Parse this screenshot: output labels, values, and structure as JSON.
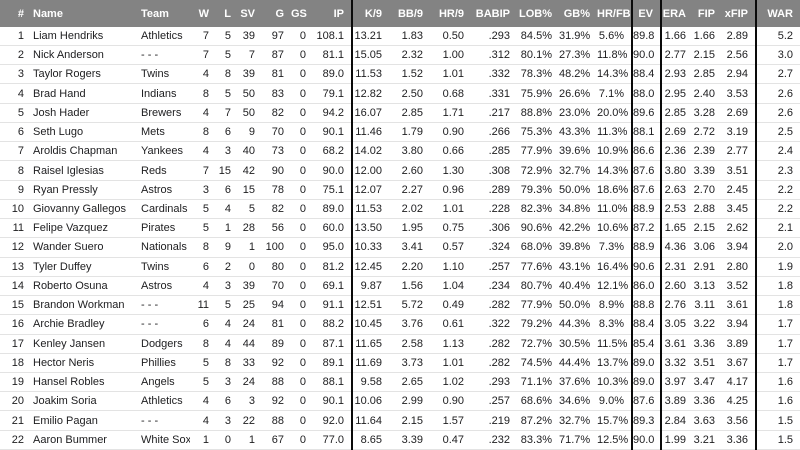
{
  "theme": {
    "header_bg": "#838383",
    "header_text": "#ffffff",
    "divider_color": "#0a0a0a",
    "row_line_color": "#e3e3e3",
    "text_color": "#1d1d1f"
  },
  "table": {
    "columns": [
      {
        "key": "rank",
        "label": "#",
        "group_end": false
      },
      {
        "key": "name",
        "label": "Name",
        "group_end": false
      },
      {
        "key": "team",
        "label": "Team",
        "group_end": false
      },
      {
        "key": "w",
        "label": "W",
        "group_end": false
      },
      {
        "key": "l",
        "label": "L",
        "group_end": false
      },
      {
        "key": "sv",
        "label": "SV",
        "group_end": false
      },
      {
        "key": "g",
        "label": "G",
        "group_end": false
      },
      {
        "key": "gs",
        "label": "GS",
        "group_end": false
      },
      {
        "key": "ip",
        "label": "IP",
        "group_end": true
      },
      {
        "key": "k9",
        "label": "K/9",
        "group_end": false
      },
      {
        "key": "bb9",
        "label": "BB/9",
        "group_end": false
      },
      {
        "key": "hr9",
        "label": "HR/9",
        "group_end": false
      },
      {
        "key": "babip",
        "label": "BABIP",
        "group_end": false
      },
      {
        "key": "lob",
        "label": "LOB%",
        "group_end": false
      },
      {
        "key": "gb",
        "label": "GB%",
        "group_end": false
      },
      {
        "key": "hrfb",
        "label": "HR/FB",
        "group_end": true
      },
      {
        "key": "ev",
        "label": "EV",
        "group_end": true
      },
      {
        "key": "era",
        "label": "ERA",
        "group_end": false
      },
      {
        "key": "fip",
        "label": "FIP",
        "group_end": false
      },
      {
        "key": "xfip",
        "label": "xFIP",
        "group_end": true
      },
      {
        "key": "war",
        "label": "WAR",
        "group_end": false
      }
    ],
    "rows": [
      {
        "rank": "1",
        "name": "Liam Hendriks",
        "team": "Athletics",
        "w": "7",
        "l": "5",
        "sv": "39",
        "g": "97",
        "gs": "0",
        "ip": "108.1",
        "k9": "13.21",
        "bb9": "1.83",
        "hr9": "0.50",
        "babip": ".293",
        "lob": "84.5%",
        "gb": "31.9%",
        "hrfb": "5.6%",
        "ev": "89.8",
        "era": "1.66",
        "fip": "1.66",
        "xfip": "2.89",
        "war": "5.2"
      },
      {
        "rank": "2",
        "name": "Nick Anderson",
        "team": "- - -",
        "w": "7",
        "l": "5",
        "sv": "7",
        "g": "87",
        "gs": "0",
        "ip": "81.1",
        "k9": "15.05",
        "bb9": "2.32",
        "hr9": "1.00",
        "babip": ".312",
        "lob": "80.1%",
        "gb": "27.3%",
        "hrfb": "11.8%",
        "ev": "90.0",
        "era": "2.77",
        "fip": "2.15",
        "xfip": "2.56",
        "war": "3.0"
      },
      {
        "rank": "3",
        "name": "Taylor Rogers",
        "team": "Twins",
        "w": "4",
        "l": "8",
        "sv": "39",
        "g": "81",
        "gs": "0",
        "ip": "89.0",
        "k9": "11.53",
        "bb9": "1.52",
        "hr9": "1.01",
        "babip": ".332",
        "lob": "78.3%",
        "gb": "48.2%",
        "hrfb": "14.3%",
        "ev": "88.4",
        "era": "2.93",
        "fip": "2.85",
        "xfip": "2.94",
        "war": "2.7"
      },
      {
        "rank": "4",
        "name": "Brad Hand",
        "team": "Indians",
        "w": "8",
        "l": "5",
        "sv": "50",
        "g": "83",
        "gs": "0",
        "ip": "79.1",
        "k9": "12.82",
        "bb9": "2.50",
        "hr9": "0.68",
        "babip": ".331",
        "lob": "75.9%",
        "gb": "26.6%",
        "hrfb": "7.1%",
        "ev": "88.0",
        "era": "2.95",
        "fip": "2.40",
        "xfip": "3.53",
        "war": "2.6"
      },
      {
        "rank": "5",
        "name": "Josh Hader",
        "team": "Brewers",
        "w": "4",
        "l": "7",
        "sv": "50",
        "g": "82",
        "gs": "0",
        "ip": "94.2",
        "k9": "16.07",
        "bb9": "2.85",
        "hr9": "1.71",
        "babip": ".217",
        "lob": "88.8%",
        "gb": "23.0%",
        "hrfb": "20.0%",
        "ev": "89.6",
        "era": "2.85",
        "fip": "3.28",
        "xfip": "2.69",
        "war": "2.6"
      },
      {
        "rank": "6",
        "name": "Seth Lugo",
        "team": "Mets",
        "w": "8",
        "l": "6",
        "sv": "9",
        "g": "70",
        "gs": "0",
        "ip": "90.1",
        "k9": "11.46",
        "bb9": "1.79",
        "hr9": "0.90",
        "babip": ".266",
        "lob": "75.3%",
        "gb": "43.3%",
        "hrfb": "11.3%",
        "ev": "88.1",
        "era": "2.69",
        "fip": "2.72",
        "xfip": "3.19",
        "war": "2.5"
      },
      {
        "rank": "7",
        "name": "Aroldis Chapman",
        "team": "Yankees",
        "w": "4",
        "l": "3",
        "sv": "40",
        "g": "73",
        "gs": "0",
        "ip": "68.2",
        "k9": "14.02",
        "bb9": "3.80",
        "hr9": "0.66",
        "babip": ".285",
        "lob": "77.9%",
        "gb": "39.6%",
        "hrfb": "10.9%",
        "ev": "86.6",
        "era": "2.36",
        "fip": "2.39",
        "xfip": "2.77",
        "war": "2.4"
      },
      {
        "rank": "8",
        "name": "Raisel Iglesias",
        "team": "Reds",
        "w": "7",
        "l": "15",
        "sv": "42",
        "g": "90",
        "gs": "0",
        "ip": "90.0",
        "k9": "12.00",
        "bb9": "2.60",
        "hr9": "1.30",
        "babip": ".308",
        "lob": "72.9%",
        "gb": "32.7%",
        "hrfb": "14.3%",
        "ev": "87.6",
        "era": "3.80",
        "fip": "3.39",
        "xfip": "3.51",
        "war": "2.3"
      },
      {
        "rank": "9",
        "name": "Ryan Pressly",
        "team": "Astros",
        "w": "3",
        "l": "6",
        "sv": "15",
        "g": "78",
        "gs": "0",
        "ip": "75.1",
        "k9": "12.07",
        "bb9": "2.27",
        "hr9": "0.96",
        "babip": ".289",
        "lob": "79.3%",
        "gb": "50.0%",
        "hrfb": "18.6%",
        "ev": "87.6",
        "era": "2.63",
        "fip": "2.70",
        "xfip": "2.45",
        "war": "2.2"
      },
      {
        "rank": "10",
        "name": "Giovanny Gallegos",
        "team": "Cardinals",
        "w": "5",
        "l": "4",
        "sv": "5",
        "g": "82",
        "gs": "0",
        "ip": "89.0",
        "k9": "11.53",
        "bb9": "2.02",
        "hr9": "1.01",
        "babip": ".228",
        "lob": "82.3%",
        "gb": "34.8%",
        "hrfb": "11.0%",
        "ev": "88.9",
        "era": "2.53",
        "fip": "2.88",
        "xfip": "3.45",
        "war": "2.2"
      },
      {
        "rank": "11",
        "name": "Felipe Vazquez",
        "team": "Pirates",
        "w": "5",
        "l": "1",
        "sv": "28",
        "g": "56",
        "gs": "0",
        "ip": "60.0",
        "k9": "13.50",
        "bb9": "1.95",
        "hr9": "0.75",
        "babip": ".306",
        "lob": "90.6%",
        "gb": "42.2%",
        "hrfb": "10.6%",
        "ev": "87.2",
        "era": "1.65",
        "fip": "2.15",
        "xfip": "2.62",
        "war": "2.1"
      },
      {
        "rank": "12",
        "name": "Wander Suero",
        "team": "Nationals",
        "w": "8",
        "l": "9",
        "sv": "1",
        "g": "100",
        "gs": "0",
        "ip": "95.0",
        "k9": "10.33",
        "bb9": "3.41",
        "hr9": "0.57",
        "babip": ".324",
        "lob": "68.0%",
        "gb": "39.8%",
        "hrfb": "7.3%",
        "ev": "88.9",
        "era": "4.36",
        "fip": "3.06",
        "xfip": "3.94",
        "war": "2.0"
      },
      {
        "rank": "13",
        "name": "Tyler Duffey",
        "team": "Twins",
        "w": "6",
        "l": "2",
        "sv": "0",
        "g": "80",
        "gs": "0",
        "ip": "81.2",
        "k9": "12.45",
        "bb9": "2.20",
        "hr9": "1.10",
        "babip": ".257",
        "lob": "77.6%",
        "gb": "43.1%",
        "hrfb": "16.4%",
        "ev": "90.6",
        "era": "2.31",
        "fip": "2.91",
        "xfip": "2.80",
        "war": "1.9"
      },
      {
        "rank": "14",
        "name": "Roberto Osuna",
        "team": "Astros",
        "w": "4",
        "l": "3",
        "sv": "39",
        "g": "70",
        "gs": "0",
        "ip": "69.1",
        "k9": "9.87",
        "bb9": "1.56",
        "hr9": "1.04",
        "babip": ".234",
        "lob": "80.7%",
        "gb": "40.4%",
        "hrfb": "12.1%",
        "ev": "86.0",
        "era": "2.60",
        "fip": "3.13",
        "xfip": "3.52",
        "war": "1.8"
      },
      {
        "rank": "15",
        "name": "Brandon Workman",
        "team": "- - -",
        "w": "11",
        "l": "5",
        "sv": "25",
        "g": "94",
        "gs": "0",
        "ip": "91.1",
        "k9": "12.51",
        "bb9": "5.72",
        "hr9": "0.49",
        "babip": ".282",
        "lob": "77.9%",
        "gb": "50.0%",
        "hrfb": "8.9%",
        "ev": "88.8",
        "era": "2.76",
        "fip": "3.11",
        "xfip": "3.61",
        "war": "1.8"
      },
      {
        "rank": "16",
        "name": "Archie Bradley",
        "team": "- - -",
        "w": "6",
        "l": "4",
        "sv": "24",
        "g": "81",
        "gs": "0",
        "ip": "88.2",
        "k9": "10.45",
        "bb9": "3.76",
        "hr9": "0.61",
        "babip": ".322",
        "lob": "79.2%",
        "gb": "44.3%",
        "hrfb": "8.3%",
        "ev": "88.4",
        "era": "3.05",
        "fip": "3.22",
        "xfip": "3.94",
        "war": "1.7"
      },
      {
        "rank": "17",
        "name": "Kenley Jansen",
        "team": "Dodgers",
        "w": "8",
        "l": "4",
        "sv": "44",
        "g": "89",
        "gs": "0",
        "ip": "87.1",
        "k9": "11.65",
        "bb9": "2.58",
        "hr9": "1.13",
        "babip": ".282",
        "lob": "72.7%",
        "gb": "30.5%",
        "hrfb": "11.5%",
        "ev": "85.4",
        "era": "3.61",
        "fip": "3.36",
        "xfip": "3.89",
        "war": "1.7"
      },
      {
        "rank": "18",
        "name": "Hector Neris",
        "team": "Phillies",
        "w": "5",
        "l": "8",
        "sv": "33",
        "g": "92",
        "gs": "0",
        "ip": "89.1",
        "k9": "11.69",
        "bb9": "3.73",
        "hr9": "1.01",
        "babip": ".282",
        "lob": "74.5%",
        "gb": "44.4%",
        "hrfb": "13.7%",
        "ev": "89.0",
        "era": "3.32",
        "fip": "3.51",
        "xfip": "3.67",
        "war": "1.7"
      },
      {
        "rank": "19",
        "name": "Hansel Robles",
        "team": "Angels",
        "w": "5",
        "l": "3",
        "sv": "24",
        "g": "88",
        "gs": "0",
        "ip": "88.1",
        "k9": "9.58",
        "bb9": "2.65",
        "hr9": "1.02",
        "babip": ".293",
        "lob": "71.1%",
        "gb": "37.6%",
        "hrfb": "10.3%",
        "ev": "89.0",
        "era": "3.97",
        "fip": "3.47",
        "xfip": "4.17",
        "war": "1.6"
      },
      {
        "rank": "20",
        "name": "Joakim Soria",
        "team": "Athletics",
        "w": "4",
        "l": "6",
        "sv": "3",
        "g": "92",
        "gs": "0",
        "ip": "90.1",
        "k9": "10.06",
        "bb9": "2.99",
        "hr9": "0.90",
        "babip": ".257",
        "lob": "68.6%",
        "gb": "34.6%",
        "hrfb": "9.0%",
        "ev": "87.6",
        "era": "3.89",
        "fip": "3.36",
        "xfip": "4.25",
        "war": "1.6"
      },
      {
        "rank": "21",
        "name": "Emilio Pagan",
        "team": "- - -",
        "w": "4",
        "l": "3",
        "sv": "22",
        "g": "88",
        "gs": "0",
        "ip": "92.0",
        "k9": "11.64",
        "bb9": "2.15",
        "hr9": "1.57",
        "babip": ".219",
        "lob": "87.2%",
        "gb": "32.7%",
        "hrfb": "15.7%",
        "ev": "89.3",
        "era": "2.84",
        "fip": "3.63",
        "xfip": "3.56",
        "war": "1.5"
      },
      {
        "rank": "22",
        "name": "Aaron Bummer",
        "team": "White Sox",
        "w": "1",
        "l": "0",
        "sv": "1",
        "g": "67",
        "gs": "0",
        "ip": "77.0",
        "k9": "8.65",
        "bb9": "3.39",
        "hr9": "0.47",
        "babip": ".232",
        "lob": "83.3%",
        "gb": "71.7%",
        "hrfb": "12.5%",
        "ev": "90.0",
        "era": "1.99",
        "fip": "3.21",
        "xfip": "3.36",
        "war": "1.5"
      }
    ]
  }
}
